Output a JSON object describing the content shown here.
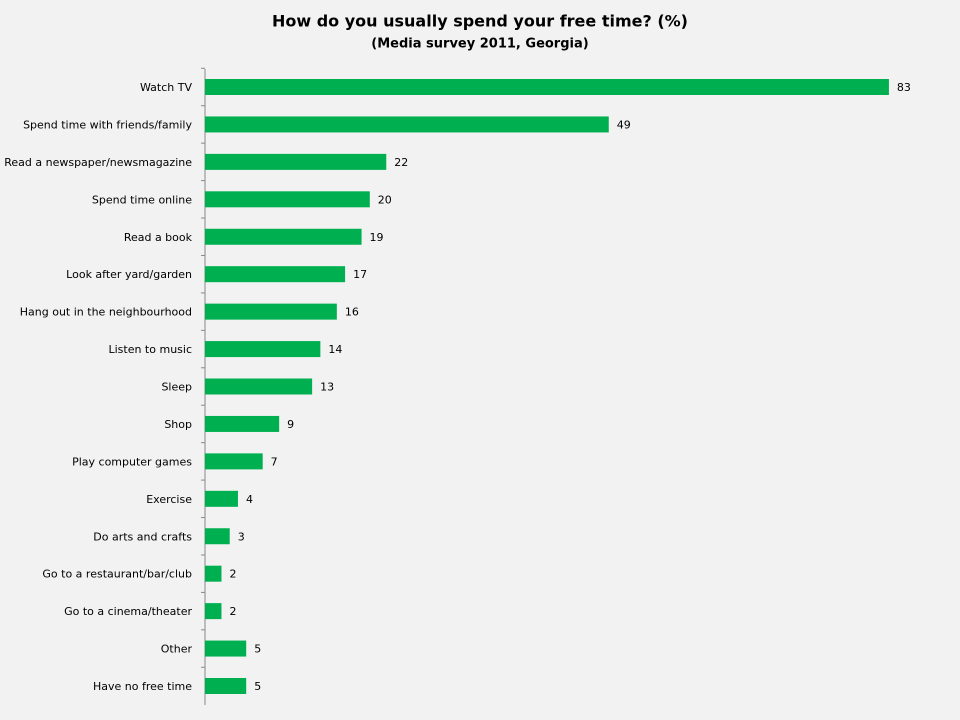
{
  "chart_data": {
    "type": "bar",
    "orientation": "horizontal",
    "title": "How do you usually spend your free time? (%)",
    "subtitle": "(Media survey 2011, Georgia)",
    "categories": [
      "Watch TV",
      "Spend time with friends/family",
      "Read a newspaper/newsmagazine",
      "Spend time online",
      "Read a book",
      "Look after yard/garden",
      "Hang out in the neighbourhood",
      "Listen to music",
      "Sleep",
      "Shop",
      "Play computer games",
      "Exercise",
      "Do arts and crafts",
      "Go to a restaurant/bar/club",
      "Go to a cinema/theater",
      "Other",
      "Have no free time"
    ],
    "values": [
      83,
      49,
      22,
      20,
      19,
      17,
      16,
      14,
      13,
      9,
      7,
      4,
      3,
      2,
      2,
      5,
      5
    ],
    "color": "#00b050"
  }
}
